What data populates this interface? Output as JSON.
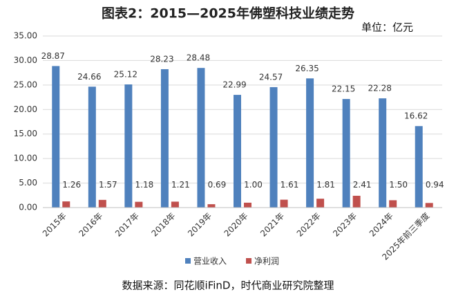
{
  "chart_data": {
    "type": "bar",
    "title": "图表2：2015—2025年佛塑科技业绩走势",
    "unit": "单位：亿元",
    "source": "数据来源：同花顺iFinD，时代商业研究院整理",
    "categories": [
      "2015年",
      "2016年",
      "2017年",
      "2018年",
      "2019年",
      "2020年",
      "2021年",
      "2022年",
      "2023年",
      "2024年",
      "2025年前三季度"
    ],
    "series": [
      {
        "name": "营业收入",
        "color": "#4f81bd",
        "values": [
          28.87,
          24.66,
          25.12,
          28.23,
          28.48,
          22.99,
          24.57,
          26.35,
          22.15,
          22.28,
          16.62
        ],
        "value_labels": [
          "28.87",
          "24.66",
          "25.12",
          "28.23",
          "28.48",
          "22.99",
          "24.57",
          "26.35",
          "22.15",
          "22.28",
          "16.62"
        ]
      },
      {
        "name": "净利润",
        "color": "#c0504d",
        "values": [
          1.26,
          1.57,
          1.18,
          1.21,
          0.69,
          1,
          1.61,
          1.81,
          2.41,
          1.5,
          0.94
        ],
        "value_labels": [
          "1.26",
          "1.57",
          "1.18",
          "1.21",
          "0.69",
          "1.00",
          "1.61",
          "1.81",
          "2.41",
          "1.50",
          "0.94"
        ]
      }
    ],
    "ylim": [
      0,
      35
    ],
    "yticks": [
      {
        "value": 0,
        "label": "0.00"
      },
      {
        "value": 5,
        "label": "5.00"
      },
      {
        "value": 10,
        "label": "10.00"
      },
      {
        "value": 15,
        "label": "15.00"
      },
      {
        "value": 20,
        "label": "20.00"
      },
      {
        "value": 25,
        "label": "25.00"
      },
      {
        "value": 30,
        "label": "30.00"
      },
      {
        "value": 35,
        "label": "35.00"
      }
    ],
    "grid": true,
    "legend": "bottom"
  }
}
